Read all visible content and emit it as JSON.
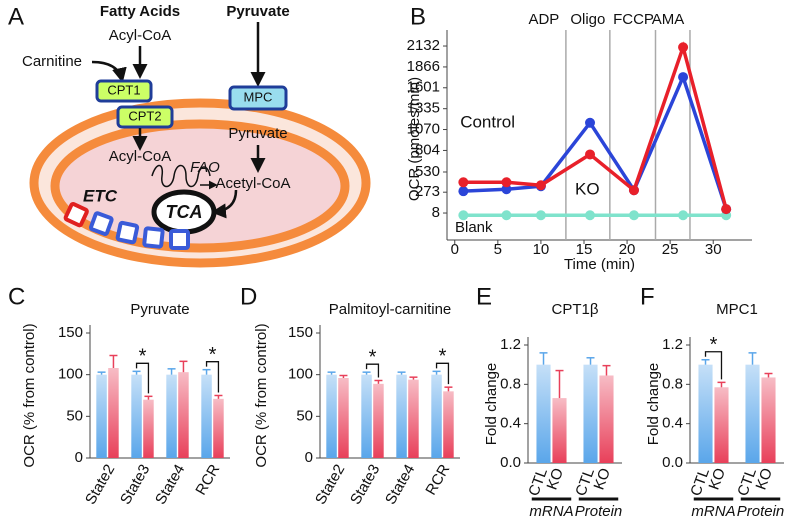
{
  "diagram": {
    "panel_label": "A",
    "texts": {
      "fatty_acids": "Fatty Acids",
      "pyruvate_in": "Pyruvate",
      "acyl_coa_out": "Acyl-CoA",
      "carnitine": "Carnitine",
      "cpt1": "CPT1",
      "cpt2": "CPT2",
      "mpc": "MPC",
      "pyruvate_mid": "Pyruvate",
      "acyl_coa_in": "Acyl-CoA",
      "fao": "FAO",
      "acetyl_coa": "Acetyl-CoA",
      "etc": "ETC",
      "tca": "TCA"
    }
  },
  "chart_data": [
    {
      "type": "line",
      "panel_label": "B",
      "x_label": "Time (min)",
      "y_label": "OCR (pmoles/min)",
      "x": [
        1,
        6,
        10,
        15.7,
        20.8,
        26.5,
        31.5
      ],
      "xlim": [
        -0.9,
        34.5
      ],
      "xticks": [
        0,
        5,
        10,
        15,
        20,
        25,
        30
      ],
      "ylim": [
        -335,
        2234
      ],
      "yticks": [
        8,
        273,
        530,
        804,
        1070,
        1335,
        1601,
        1866,
        2132
      ],
      "events": [
        {
          "label": "ADP",
          "x": 12.9
        },
        {
          "label": "Oligo",
          "x": 18
        },
        {
          "label": "FCCP",
          "x": 23.3
        },
        {
          "label": "AMA",
          "x": 27.3
        }
      ],
      "series": [
        {
          "name": "Control",
          "color": "#2b45d8",
          "values": [
            286,
            311,
            349,
            1156,
            298,
            1737,
            58
          ],
          "errors": [
            20,
            20,
            20,
            45,
            20,
            50,
            20
          ]
        },
        {
          "name": "KO",
          "color": "#e8202a",
          "values": [
            399,
            399,
            361,
            753,
            298,
            2116,
            58
          ],
          "errors": [
            20,
            20,
            20,
            40,
            20,
            45,
            20
          ]
        },
        {
          "name": "Blank",
          "color": "#7fe3cc",
          "values": [
            -20,
            -20,
            -20,
            -20,
            -20,
            -20,
            -20
          ],
          "errors": [
            0,
            0,
            0,
            0,
            0,
            0,
            0
          ]
        }
      ]
    },
    {
      "type": "bar",
      "panel_label": "C",
      "title": "Pyruvate",
      "y_label": "OCR (% from control)",
      "categories": [
        "State2",
        "State3",
        "State4",
        "RCR"
      ],
      "ylim": [
        0,
        150
      ],
      "yticks": [
        0,
        50,
        100,
        150
      ],
      "series": [
        {
          "color": "#5aa6ea",
          "values": [
            100,
            100,
            100,
            100
          ],
          "errors": [
            3,
            4,
            7,
            6
          ]
        },
        {
          "color": "#e8405a",
          "values": [
            108,
            70,
            103,
            71
          ],
          "errors": [
            15,
            4,
            13,
            4
          ]
        }
      ],
      "significance": [
        {
          "label": "*",
          "category": 1
        },
        {
          "label": "*",
          "category": 3
        }
      ]
    },
    {
      "type": "bar",
      "panel_label": "D",
      "title": "Palmitoyl-carnitine",
      "y_label": "OCR (% from control)",
      "categories": [
        "State2",
        "State3",
        "State4",
        "RCR"
      ],
      "ylim": [
        0,
        150
      ],
      "yticks": [
        0,
        50,
        100,
        150
      ],
      "series": [
        {
          "color": "#5aa6ea",
          "values": [
            100,
            100,
            100,
            100
          ],
          "errors": [
            3,
            3,
            3,
            4
          ]
        },
        {
          "color": "#e8405a",
          "values": [
            96,
            89,
            94,
            80
          ],
          "errors": [
            3,
            4,
            3,
            5
          ]
        }
      ],
      "significance": [
        {
          "label": "*",
          "category": 1
        },
        {
          "label": "*",
          "category": 3
        }
      ]
    },
    {
      "type": "bar",
      "panel_label": "E",
      "title": "CPT1β",
      "y_label": "Fold change",
      "groups": [
        "mRNA",
        "Protein"
      ],
      "ylim": [
        0,
        1.2
      ],
      "yticks": [
        {
          "value": 0,
          "label": "0.0"
        },
        0.4,
        0.8,
        1.2
      ],
      "series": [
        {
          "name": "CTL",
          "color": "#5aa6ea",
          "values": [
            1.0,
            1.0
          ],
          "errors": [
            0.12,
            0.07
          ]
        },
        {
          "name": "KO",
          "color": "#e8405a",
          "values": [
            0.66,
            0.89
          ],
          "errors": [
            0.28,
            0.1
          ]
        }
      ]
    },
    {
      "type": "bar",
      "panel_label": "F",
      "title": "MPC1",
      "y_label": "Fold change",
      "groups": [
        "mRNA",
        "Protein"
      ],
      "ylim": [
        0,
        1.2
      ],
      "yticks": [
        {
          "value": 0,
          "label": "0.0"
        },
        0.4,
        0.8,
        1.2
      ],
      "series": [
        {
          "name": "CTL",
          "color": "#5aa6ea",
          "values": [
            1.0,
            1.0
          ],
          "errors": [
            0.05,
            0.12
          ]
        },
        {
          "name": "KO",
          "color": "#e8405a",
          "values": [
            0.77,
            0.87
          ],
          "errors": [
            0.05,
            0.04
          ]
        }
      ],
      "significance": [
        {
          "label": "*",
          "category": 0
        }
      ]
    }
  ]
}
